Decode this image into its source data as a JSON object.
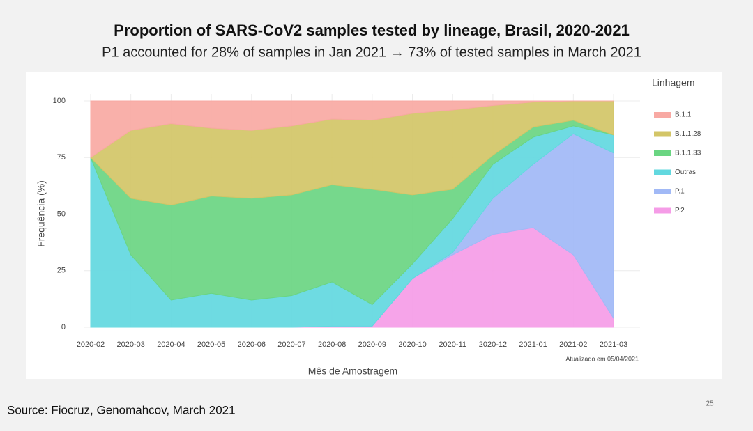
{
  "chart_data": {
    "type": "area",
    "stacked": true,
    "title": "Proportion of SARS-CoV2 samples tested by lineage, Brasil, 2020-2021",
    "subtitle": "P1 accounted for 28% of samples in Jan 2021 → 73% of tested samples in March 2021",
    "x_label": "Mês de Amostragem",
    "y_label": "Frequência (%)",
    "annotation": "Atualizado em 05/04/2021",
    "legend_title": "Linhagem",
    "legend_position": "right",
    "grid": true,
    "categories": [
      "2020-02",
      "2020-03",
      "2020-04",
      "2020-05",
      "2020-06",
      "2020-07",
      "2020-08",
      "2020-09",
      "2020-10",
      "2020-11",
      "2020-12",
      "2021-01",
      "2021-02",
      "2021-03"
    ],
    "ylim": [
      0,
      100
    ],
    "yticks": [
      0,
      25,
      50,
      75,
      100
    ],
    "series": [
      {
        "name": "B.1.1",
        "color": "#f8a9a3",
        "values": [
          25,
          13,
          10,
          12,
          13,
          11,
          8,
          8.5,
          5.5,
          4,
          2,
          0.5,
          0,
          0
        ]
      },
      {
        "name": "B.1.1.28",
        "color": "#d3c567",
        "values": [
          0,
          30,
          36,
          30,
          30,
          30.5,
          29,
          30.5,
          36,
          35,
          22,
          11,
          8.5,
          15
        ]
      },
      {
        "name": "B.1.1.33",
        "color": "#6ad582",
        "values": [
          0,
          25,
          42,
          43,
          45,
          44.5,
          43,
          51,
          30.5,
          13,
          4,
          4.5,
          2.5,
          0
        ]
      },
      {
        "name": "Outras",
        "color": "#62d8df",
        "values": [
          75,
          32,
          12,
          15,
          12,
          14,
          19.5,
          9.5,
          6.5,
          15,
          15,
          12,
          3.5,
          8
        ]
      },
      {
        "name": "P.1",
        "color": "#a1b9f6",
        "values": [
          0,
          0,
          0,
          0,
          0,
          0,
          0,
          0,
          0,
          1,
          16,
          28,
          53.5,
          73
        ]
      },
      {
        "name": "P.2",
        "color": "#f59ce7",
        "values": [
          0,
          0,
          0,
          0,
          0,
          0,
          0.5,
          0.5,
          21.5,
          32,
          41,
          44,
          32,
          4
        ]
      }
    ]
  },
  "source": "Source: Fiocruz, Genomahcov, March 2021",
  "page_number": "25"
}
